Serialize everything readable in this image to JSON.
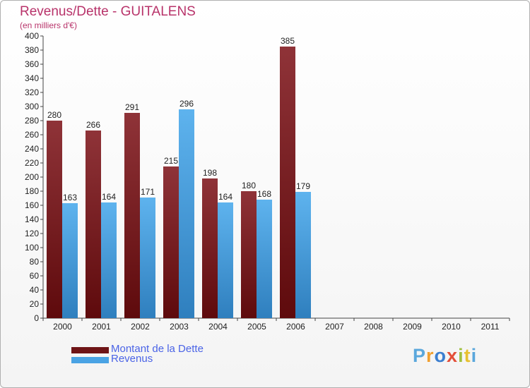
{
  "header": {
    "title": "Revenus/Dette - GUITALENS",
    "subtitle": "(en milliers d'€)"
  },
  "chart_data": {
    "type": "bar",
    "title": "Revenus/Dette - GUITALENS",
    "ylabel": "(en milliers d'€)",
    "xlabel": "",
    "ylim": [
      0,
      400
    ],
    "ytick_step": 20,
    "grid": false,
    "legend_position": "bottom-left",
    "categories": [
      "2000",
      "2001",
      "2002",
      "2003",
      "2004",
      "2005",
      "2006",
      "2007",
      "2008",
      "2009",
      "2010",
      "2011"
    ],
    "series": [
      {
        "name": "Montant de la Dette",
        "color": "#8b2a2f",
        "values": [
          280,
          266,
          291,
          215,
          198,
          180,
          385,
          null,
          null,
          null,
          null,
          null
        ]
      },
      {
        "name": "Revenus",
        "color": "#4aa3e4",
        "values": [
          163,
          164,
          171,
          296,
          164,
          168,
          179,
          null,
          null,
          null,
          null,
          null
        ]
      }
    ]
  },
  "legend": {
    "items": [
      {
        "label": "Montant de la Dette",
        "color": "#6e1416"
      },
      {
        "label": "Revenus",
        "color": "#4aa3e4"
      }
    ]
  },
  "logo": {
    "text": "Proxiti",
    "colors": [
      "#5aa7dc",
      "#f0a030",
      "#3c7fd0",
      "#e34f3a",
      "#a0c040",
      "#e8c030",
      "#5aa7dc"
    ]
  }
}
